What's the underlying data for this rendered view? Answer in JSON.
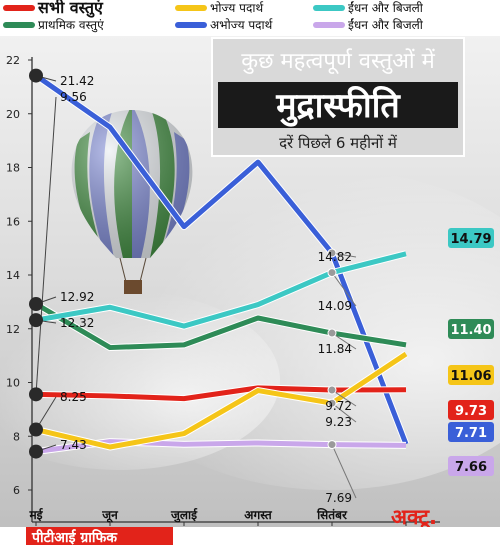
{
  "chart_data": {
    "type": "line",
    "title": "मुद्रास्फीति",
    "supertitle": "कुछ महत्वपूर्ण वस्तुओं में",
    "subtitle": "दरें पिछले 6 महीनों में",
    "source": "पीटीआई ग्राफिक",
    "categories": [
      "मई",
      "जून",
      "जुलाई",
      "अगस्त",
      "सितंबर",
      "अक्टू."
    ],
    "ylim": [
      6,
      22
    ],
    "yticks": [
      "6",
      "8",
      "10",
      "12",
      "14",
      "16",
      "18",
      "20",
      "22"
    ],
    "grid": false,
    "legend_placement": "top",
    "series": [
      {
        "name": "सभी वस्तुएं",
        "color": "#e2231a",
        "values": [
          9.56,
          9.5,
          9.4,
          9.8,
          9.72,
          9.73
        ],
        "labels": [
          "9.56",
          "",
          "",
          "",
          "9.72",
          "9.73"
        ]
      },
      {
        "name": "प्राथमिक वस्तुएं",
        "color": "#2e8b57",
        "values": [
          12.92,
          11.3,
          11.4,
          12.4,
          11.84,
          11.4
        ],
        "labels": [
          "12.92",
          "",
          "",
          "",
          "11.84",
          "11.40"
        ]
      },
      {
        "name": "भोज्य पदार्थ",
        "color": "#f5c518",
        "values": [
          8.25,
          7.6,
          8.1,
          9.7,
          9.23,
          11.06
        ],
        "labels": [
          "8.25",
          "",
          "",
          "",
          "9.23",
          "11.06"
        ]
      },
      {
        "name": "अभोज्य पदार्थ",
        "color": "#3a5fd8",
        "values": [
          21.42,
          19.5,
          15.8,
          18.2,
          14.82,
          7.71
        ],
        "labels": [
          "21.42",
          "",
          "",
          "",
          "14.82",
          "7.71"
        ]
      },
      {
        "name": "ईंधन और बिजली",
        "color": "#3cc8c4",
        "values": [
          12.32,
          12.8,
          12.1,
          12.9,
          14.09,
          14.79
        ],
        "labels": [
          "12.32",
          "",
          "",
          "",
          "14.09",
          "14.79"
        ]
      },
      {
        "name": "ईंधन और बिजली",
        "color": "#c9a7ea",
        "values": [
          7.43,
          7.8,
          7.7,
          7.75,
          7.69,
          7.66
        ],
        "labels": [
          "7.43",
          "",
          "",
          "",
          "7.69",
          "7.66"
        ]
      }
    ]
  }
}
